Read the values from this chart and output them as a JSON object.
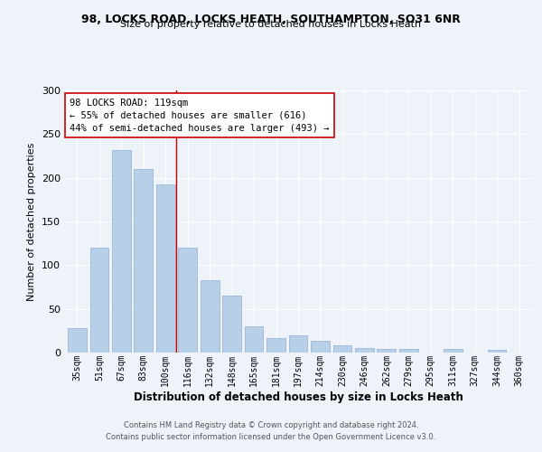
{
  "title_line1": "98, LOCKS ROAD, LOCKS HEATH, SOUTHAMPTON, SO31 6NR",
  "title_line2": "Size of property relative to detached houses in Locks Heath",
  "xlabel": "Distribution of detached houses by size in Locks Heath",
  "ylabel": "Number of detached properties",
  "categories": [
    "35sqm",
    "51sqm",
    "67sqm",
    "83sqm",
    "100sqm",
    "116sqm",
    "132sqm",
    "148sqm",
    "165sqm",
    "181sqm",
    "197sqm",
    "214sqm",
    "230sqm",
    "246sqm",
    "262sqm",
    "279sqm",
    "295sqm",
    "311sqm",
    "327sqm",
    "344sqm",
    "360sqm"
  ],
  "values": [
    28,
    120,
    232,
    210,
    192,
    120,
    83,
    65,
    30,
    17,
    20,
    13,
    8,
    5,
    4,
    4,
    0,
    4,
    0,
    3,
    0
  ],
  "bar_color": "#b8cfe8",
  "bar_edge_color": "#9ab5d8",
  "vline_color": "#cc0000",
  "vline_x_index": 4.5,
  "annotation_text_line1": "98 LOCKS ROAD: 119sqm",
  "annotation_text_line2": "← 55% of detached houses are smaller (616)",
  "annotation_text_line3": "44% of semi-detached houses are larger (493) →",
  "annotation_box_facecolor": "#ffffff",
  "annotation_box_edgecolor": "#cc0000",
  "ylim": [
    0,
    300
  ],
  "yticks": [
    0,
    50,
    100,
    150,
    200,
    250,
    300
  ],
  "background_color": "#eef2f9",
  "grid_color": "#ffffff",
  "footer_line1": "Contains HM Land Registry data © Crown copyright and database right 2024.",
  "footer_line2": "Contains public sector information licensed under the Open Government Licence v3.0."
}
